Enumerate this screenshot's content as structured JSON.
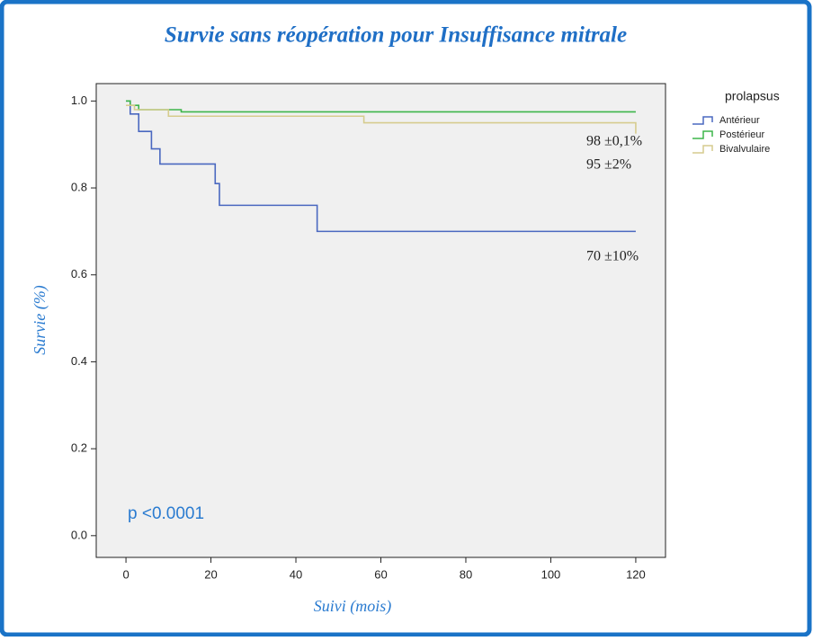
{
  "chart_data": {
    "type": "line",
    "step": true,
    "title": "Survie sans réopération pour Insuffisance mitrale",
    "x_label": "Suivi (mois)",
    "y_label": "Survie (%)",
    "legend_title": "prolapsus",
    "legend": "right",
    "xlim": [
      -7,
      127
    ],
    "ylim": [
      -0.05,
      1.04
    ],
    "xticks": [
      0,
      20,
      40,
      60,
      80,
      100,
      120
    ],
    "yticks": [
      {
        "value": 0,
        "label": "0.0"
      },
      {
        "value": 0.2,
        "label": "0.2"
      },
      {
        "value": 0.4,
        "label": "0.4"
      },
      {
        "value": 0.6,
        "label": "0.6"
      },
      {
        "value": 0.8,
        "label": "0.8"
      },
      {
        "value": 1,
        "label": "1.0"
      }
    ],
    "series": [
      {
        "name": "Antérieur",
        "color": "#4a68c0",
        "x": [
          0,
          1,
          3,
          6,
          8,
          21,
          22,
          45,
          120
        ],
        "values": [
          1.0,
          0.97,
          0.93,
          0.89,
          0.855,
          0.81,
          0.76,
          0.7,
          0.7
        ]
      },
      {
        "name": "Postérieur",
        "color": "#3db54a",
        "x": [
          0,
          1,
          3,
          13,
          120
        ],
        "values": [
          1.0,
          0.99,
          0.98,
          0.975,
          0.975
        ]
      },
      {
        "name": "Bivalvulaire",
        "color": "#d6cc8e",
        "x": [
          0,
          2,
          10,
          56,
          120,
          120
        ],
        "values": [
          0.99,
          0.98,
          0.965,
          0.95,
          0.95,
          0.925
        ]
      }
    ],
    "annotations": [
      "98 ±0,1%",
      "95 ±2%",
      "70 ±10%",
      "p <0.0001"
    ]
  }
}
